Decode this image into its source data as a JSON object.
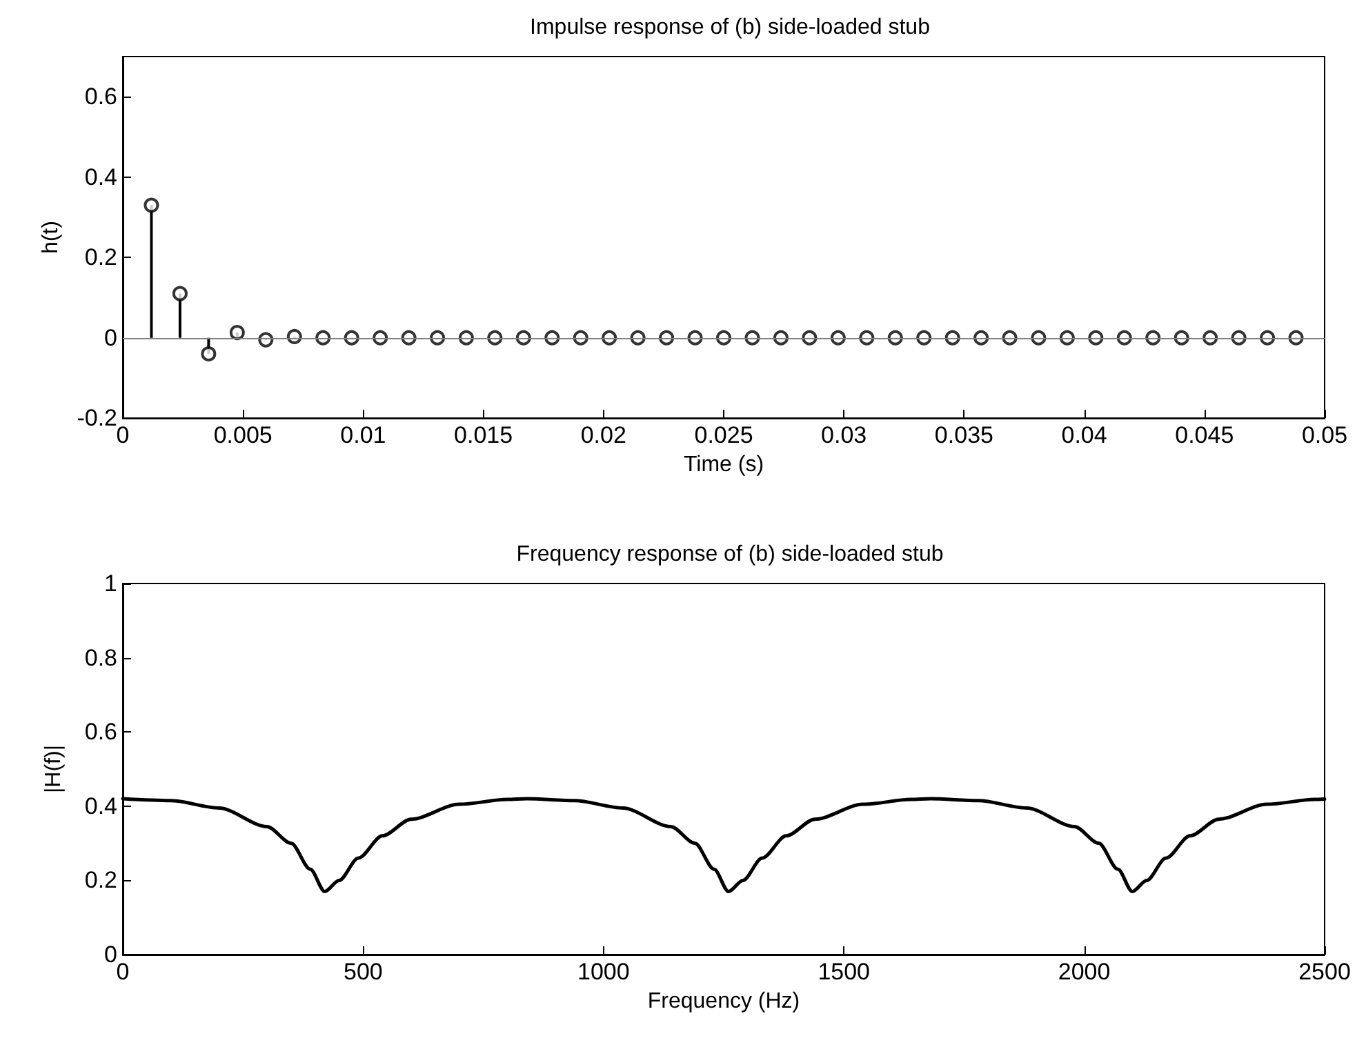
{
  "chart_data": [
    {
      "type": "lollipop",
      "title": "Impulse response of (b) side-loaded stub",
      "xlabel": "Time (s)",
      "ylabel": "h(t)",
      "x": [
        0.00119,
        0.00238,
        0.00357,
        0.00476,
        0.00595,
        0.00714,
        0.00833,
        0.00952,
        0.01071,
        0.0119,
        0.01309,
        0.01429,
        0.01548,
        0.01667,
        0.01786,
        0.01905,
        0.02024,
        0.02143,
        0.02262,
        0.02381,
        0.025,
        0.02619,
        0.02738,
        0.02857,
        0.02976,
        0.03095,
        0.03214,
        0.03333,
        0.03452,
        0.03571,
        0.0369,
        0.0381,
        0.03929,
        0.04048,
        0.04167,
        0.04286,
        0.04405,
        0.04524,
        0.04643,
        0.04762,
        0.04881
      ],
      "values": [
        0.33,
        0.11,
        -0.04,
        0.013,
        -0.005,
        0.003,
        0,
        0,
        0,
        0,
        0,
        0,
        0,
        0,
        0,
        0,
        0,
        0,
        0,
        0,
        0,
        0,
        0,
        0,
        0,
        0,
        0,
        0,
        0,
        0,
        0,
        0,
        0,
        0,
        0,
        0,
        0,
        0,
        0,
        0,
        0
      ],
      "color": "#000000",
      "marker": "circle",
      "xlim": [
        0,
        0.05
      ],
      "xticks": [
        0,
        0.005,
        0.01,
        0.015,
        0.02,
        0.025,
        0.03,
        0.035,
        0.04,
        0.045,
        0.05
      ],
      "ylim": [
        -0.2,
        0.7
      ],
      "yticks": [
        -0.2,
        0,
        0.2,
        0.4,
        0.6
      ],
      "ref_lines": [
        {
          "axis": "y",
          "value": 0,
          "color": "#808080"
        }
      ],
      "grid": false
    },
    {
      "type": "line",
      "title": "Frequency response of (b) side-loaded stub",
      "xlabel": "Frequency (Hz)",
      "ylabel": "|H(f)|",
      "x": [
        0,
        100,
        200,
        300,
        350,
        390,
        420,
        450,
        490,
        540,
        600,
        700,
        800,
        840,
        940,
        1040,
        1140,
        1190,
        1230,
        1260,
        1290,
        1330,
        1380,
        1440,
        1540,
        1640,
        1680,
        1780,
        1880,
        1980,
        2030,
        2070,
        2100,
        2130,
        2170,
        2220,
        2280,
        2380,
        2480,
        2500
      ],
      "values": [
        0.42,
        0.415,
        0.395,
        0.345,
        0.3,
        0.23,
        0.17,
        0.2,
        0.26,
        0.32,
        0.365,
        0.405,
        0.418,
        0.42,
        0.415,
        0.395,
        0.345,
        0.3,
        0.23,
        0.17,
        0.2,
        0.26,
        0.32,
        0.365,
        0.405,
        0.418,
        0.42,
        0.415,
        0.395,
        0.345,
        0.3,
        0.23,
        0.17,
        0.2,
        0.26,
        0.32,
        0.365,
        0.405,
        0.418,
        0.419
      ],
      "color": "#000000",
      "marker": "none",
      "line_style": "solid",
      "xlim": [
        0,
        2500
      ],
      "xticks": [
        0,
        500,
        1000,
        1500,
        2000,
        2500
      ],
      "ylim": [
        0,
        1
      ],
      "yticks": [
        0,
        0.2,
        0.4,
        0.6,
        0.8,
        1
      ],
      "grid": false
    }
  ]
}
